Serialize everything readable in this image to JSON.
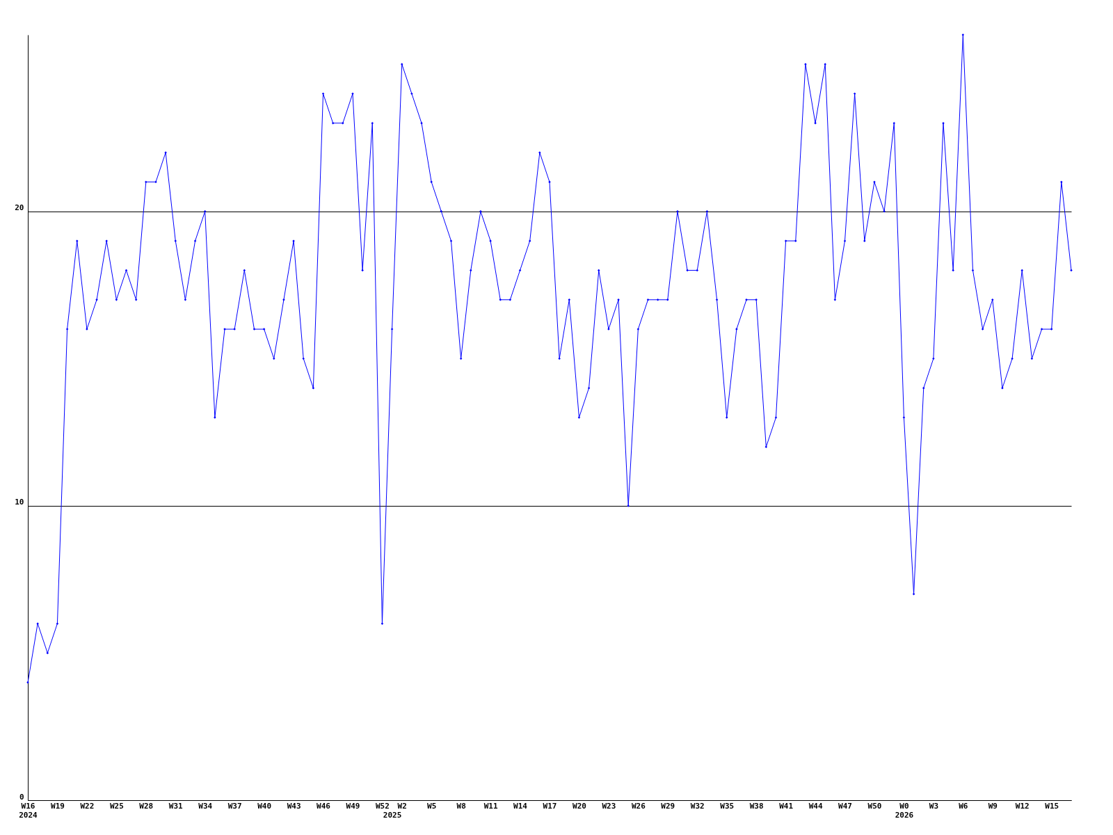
{
  "chart_data": {
    "type": "line",
    "categories": [
      "W16\n2024",
      null,
      null,
      "W19",
      null,
      null,
      "W22",
      null,
      null,
      "W25",
      null,
      null,
      "W28",
      null,
      null,
      "W31",
      null,
      null,
      "W34",
      null,
      null,
      "W37",
      null,
      null,
      "W40",
      null,
      null,
      "W43",
      null,
      null,
      "W46",
      null,
      null,
      "W49",
      null,
      null,
      "W52",
      "\n2025",
      "W2",
      null,
      null,
      "W5",
      null,
      null,
      "W8",
      null,
      null,
      "W11",
      null,
      null,
      "W14",
      null,
      null,
      "W17",
      null,
      null,
      "W20",
      null,
      null,
      "W23",
      null,
      null,
      "W26",
      null,
      null,
      "W29",
      null,
      null,
      "W32",
      null,
      null,
      "W35",
      null,
      null,
      "W38",
      null,
      null,
      "W41",
      null,
      null,
      "W44",
      null,
      null,
      "W47",
      null,
      null,
      "W50",
      null,
      null,
      "W0\n2026",
      null,
      null,
      "W3",
      null,
      null,
      "W6",
      null,
      null,
      "W9",
      null,
      null,
      "W12",
      null,
      null,
      "W15",
      null,
      null
    ],
    "series": [
      {
        "color": "#0000ff",
        "values": [
          4,
          6,
          5,
          6,
          16,
          19,
          16,
          17,
          19,
          17,
          18,
          17,
          21,
          21,
          22,
          19,
          17,
          19,
          20,
          13,
          16,
          16,
          18,
          16,
          16,
          15,
          17,
          19,
          15,
          14,
          24,
          23,
          23,
          24,
          18,
          23,
          6,
          16,
          25,
          24,
          23,
          21,
          20,
          19,
          15,
          18,
          20,
          19,
          17,
          17,
          18,
          19,
          22,
          21,
          15,
          17,
          13,
          14,
          18,
          16,
          17,
          10,
          16,
          17,
          17,
          17,
          20,
          18,
          18,
          20,
          17,
          13,
          16,
          17,
          17,
          12,
          13,
          19,
          19,
          25,
          23,
          25,
          17,
          19,
          24,
          19,
          21,
          20,
          23,
          13,
          7,
          14,
          15,
          23,
          18,
          26,
          18,
          16,
          17,
          14,
          15,
          18,
          15,
          16,
          16,
          21,
          18
        ]
      }
    ],
    "ylim": [
      0,
      26
    ],
    "yticks": [
      0,
      10,
      20
    ],
    "grid": "y",
    "marker": "diamond",
    "line_style": "solid",
    "legend": false
  }
}
